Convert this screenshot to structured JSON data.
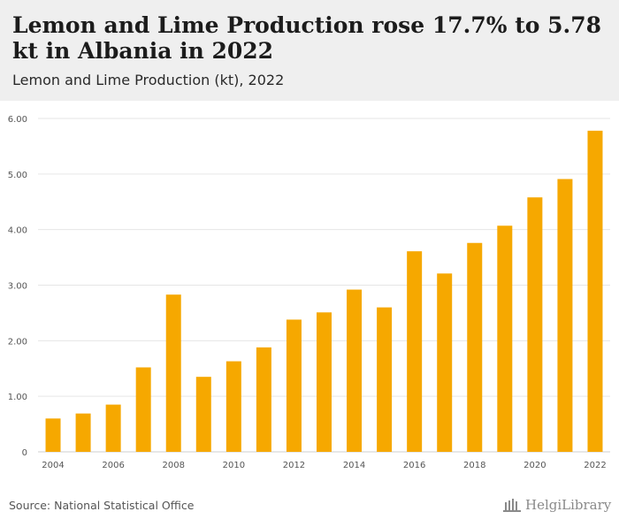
{
  "header": {
    "title": "Lemon and Lime Production rose 17.7% to 5.78 kt in Albania in 2022",
    "subtitle": "Lemon and Lime Production (kt), 2022"
  },
  "footer": {
    "source": "Source: National Statistical Office",
    "brand": "HelgiLibrary"
  },
  "colors": {
    "bar": "#f6a800",
    "grid": "#e6e6e6",
    "header_bg": "#efefef"
  },
  "chart_data": {
    "type": "bar",
    "title": "Lemon and Lime Production (kt), 2022",
    "categories": [
      "2004",
      "2005",
      "2006",
      "2007",
      "2008",
      "2009",
      "2010",
      "2011",
      "2012",
      "2013",
      "2014",
      "2015",
      "2016",
      "2017",
      "2018",
      "2019",
      "2020",
      "2021",
      "2022"
    ],
    "x_tick_labels": [
      "2004",
      "2006",
      "2008",
      "2010",
      "2012",
      "2014",
      "2016",
      "2018",
      "2020",
      "2022"
    ],
    "values": [
      0.6,
      0.69,
      0.85,
      1.52,
      2.83,
      1.35,
      1.63,
      1.88,
      2.38,
      2.51,
      2.92,
      2.6,
      3.61,
      3.21,
      3.76,
      4.07,
      4.58,
      4.91,
      5.78
    ],
    "ylim": [
      0,
      6
    ],
    "y_ticks": [
      0,
      1,
      2,
      3,
      4,
      5,
      6
    ],
    "y_tick_labels": [
      "0",
      "1.00",
      "2.00",
      "3.00",
      "4.00",
      "5.00",
      "6.00"
    ],
    "grid": true,
    "xlabel": "",
    "ylabel": ""
  }
}
